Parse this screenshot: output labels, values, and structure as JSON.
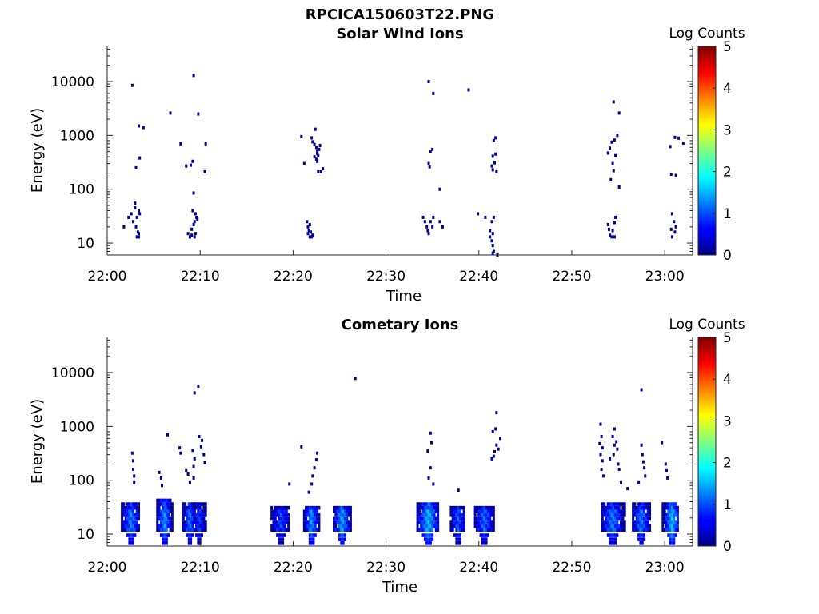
{
  "figure_title": "RPCICA150603T22.PNG",
  "colorbar": {
    "label": "Log Counts",
    "ticks": [
      "0",
      "1",
      "2",
      "3",
      "4",
      "5"
    ],
    "range": [
      0,
      5
    ]
  },
  "chart_data": [
    {
      "type": "heatmap",
      "title": "Solar Wind Ions",
      "xlabel": "Time",
      "ylabel": "Energy (eV)",
      "x_ticks": [
        "22:00",
        "22:10",
        "22:20",
        "22:30",
        "22:40",
        "22:50",
        "23:00"
      ],
      "y_ticks": [
        "10",
        "100",
        "1000",
        "10000"
      ],
      "y_scale": "log",
      "xlim_minutes": [
        0,
        63
      ],
      "ylim": [
        6,
        45000
      ],
      "clim": [
        0,
        5
      ],
      "points": [
        [
          2.7,
          8500,
          0.1
        ],
        [
          3.4,
          1500,
          0.1
        ],
        [
          3.9,
          1400,
          0.1
        ],
        [
          3.5,
          380,
          0.1
        ],
        [
          3.1,
          250,
          0.1
        ],
        [
          1.8,
          20,
          0.1
        ],
        [
          2.3,
          30,
          0.1
        ],
        [
          2.6,
          35,
          0.1
        ],
        [
          3.0,
          45,
          0.1
        ],
        [
          3.2,
          30,
          0.1
        ],
        [
          3.4,
          40,
          0.1
        ],
        [
          3.5,
          35,
          0.1
        ],
        [
          3.1,
          20,
          0.1
        ],
        [
          3.3,
          16,
          0.1
        ],
        [
          3.4,
          15,
          0.1
        ],
        [
          3.2,
          13,
          0.1
        ],
        [
          3.4,
          13,
          0.1
        ],
        [
          2.8,
          25,
          0.1
        ],
        [
          3.0,
          55,
          0.1
        ],
        [
          9.3,
          13000,
          0.1
        ],
        [
          6.8,
          2600,
          0.1
        ],
        [
          9.8,
          2500,
          0.1
        ],
        [
          7.9,
          700,
          0.1
        ],
        [
          10.6,
          700,
          0.1
        ],
        [
          8.5,
          270,
          0.1
        ],
        [
          9.0,
          280,
          0.1
        ],
        [
          9.2,
          330,
          0.1
        ],
        [
          10.5,
          210,
          0.1
        ],
        [
          9.3,
          85,
          0.1
        ],
        [
          8.7,
          15,
          0.1
        ],
        [
          8.9,
          13,
          0.1
        ],
        [
          9.1,
          18,
          0.1
        ],
        [
          9.3,
          22,
          0.1
        ],
        [
          9.4,
          25,
          0.1
        ],
        [
          9.2,
          40,
          0.1
        ],
        [
          9.5,
          35,
          0.1
        ],
        [
          9.6,
          30,
          0.1
        ],
        [
          9.1,
          14,
          0.1
        ],
        [
          9.4,
          13,
          0.1
        ],
        [
          9.5,
          15,
          0.1
        ],
        [
          9.7,
          28,
          0.1
        ],
        [
          20.9,
          950,
          0.1
        ],
        [
          22.0,
          900,
          0.1
        ],
        [
          22.4,
          1300,
          0.1
        ],
        [
          21.2,
          300,
          0.1
        ],
        [
          22.1,
          760,
          0.1
        ],
        [
          22.3,
          680,
          0.1
        ],
        [
          22.5,
          600,
          0.1
        ],
        [
          22.6,
          520,
          0.1
        ],
        [
          22.6,
          460,
          0.1
        ],
        [
          22.7,
          420,
          0.1
        ],
        [
          22.3,
          400,
          0.1
        ],
        [
          22.5,
          360,
          0.1
        ],
        [
          22.6,
          330,
          0.1
        ],
        [
          22.8,
          550,
          0.1
        ],
        [
          22.9,
          650,
          0.1
        ],
        [
          22.7,
          210,
          0.1
        ],
        [
          23.0,
          210,
          0.1
        ],
        [
          23.2,
          240,
          0.1
        ],
        [
          21.5,
          25,
          0.1
        ],
        [
          21.6,
          20,
          0.1
        ],
        [
          21.7,
          17,
          0.1
        ],
        [
          21.6,
          15,
          0.1
        ],
        [
          21.8,
          13,
          0.1
        ],
        [
          22.0,
          13,
          0.1
        ],
        [
          21.9,
          16,
          0.1
        ],
        [
          21.8,
          22,
          0.1
        ],
        [
          22.1,
          14,
          0.1
        ],
        [
          34.6,
          10000,
          0.1
        ],
        [
          35.1,
          6000,
          0.1
        ],
        [
          38.9,
          7000,
          0.1
        ],
        [
          35.0,
          550,
          0.1
        ],
        [
          34.8,
          500,
          0.1
        ],
        [
          34.6,
          300,
          0.1
        ],
        [
          34.7,
          260,
          0.1
        ],
        [
          35.8,
          100,
          0.1
        ],
        [
          34.0,
          30,
          0.1
        ],
        [
          34.2,
          25,
          0.1
        ],
        [
          34.4,
          20,
          0.1
        ],
        [
          34.5,
          17,
          0.1
        ],
        [
          34.8,
          25,
          0.1
        ],
        [
          35.1,
          30,
          0.1
        ],
        [
          35.0,
          20,
          0.1
        ],
        [
          34.6,
          15,
          0.1
        ],
        [
          35.8,
          25,
          0.1
        ],
        [
          36.1,
          20,
          0.1
        ],
        [
          41.8,
          900,
          0.1
        ],
        [
          41.6,
          800,
          0.1
        ],
        [
          41.8,
          450,
          0.1
        ],
        [
          41.5,
          410,
          0.1
        ],
        [
          41.4,
          270,
          0.1
        ],
        [
          41.7,
          310,
          0.1
        ],
        [
          41.5,
          230,
          0.1
        ],
        [
          41.9,
          210,
          0.1
        ],
        [
          39.9,
          35,
          0.1
        ],
        [
          41.4,
          25,
          0.1
        ],
        [
          41.6,
          30,
          0.1
        ],
        [
          41.2,
          17,
          0.1
        ],
        [
          41.5,
          15,
          0.1
        ],
        [
          41.2,
          13,
          0.1
        ],
        [
          41.4,
          11,
          0.1
        ],
        [
          41.5,
          9,
          0.1
        ],
        [
          41.6,
          7,
          0.1
        ],
        [
          41.5,
          6.5,
          0.1
        ],
        [
          42.0,
          6,
          0.1
        ],
        [
          40.7,
          30,
          0.1
        ],
        [
          54.5,
          4200,
          0.1
        ],
        [
          55.1,
          2600,
          0.1
        ],
        [
          53.9,
          470,
          0.1
        ],
        [
          54.1,
          580,
          0.1
        ],
        [
          54.3,
          750,
          0.1
        ],
        [
          54.6,
          820,
          0.1
        ],
        [
          54.9,
          1000,
          0.1
        ],
        [
          54.7,
          420,
          0.1
        ],
        [
          54.4,
          300,
          0.1
        ],
        [
          54.5,
          220,
          0.1
        ],
        [
          54.2,
          150,
          0.1
        ],
        [
          55.1,
          110,
          0.1
        ],
        [
          53.9,
          22,
          0.1
        ],
        [
          54.0,
          18,
          0.1
        ],
        [
          54.1,
          14,
          0.1
        ],
        [
          54.3,
          13,
          0.1
        ],
        [
          54.4,
          17,
          0.1
        ],
        [
          54.6,
          24,
          0.1
        ],
        [
          54.7,
          30,
          0.1
        ],
        [
          54.6,
          13,
          0.1
        ],
        [
          60.6,
          620,
          0.1
        ],
        [
          61.1,
          920,
          0.1
        ],
        [
          61.5,
          890,
          0.1
        ],
        [
          62.0,
          720,
          0.1
        ],
        [
          60.7,
          190,
          0.1
        ],
        [
          61.2,
          180,
          0.1
        ],
        [
          60.8,
          35,
          0.1
        ],
        [
          61.0,
          25,
          0.1
        ],
        [
          60.7,
          18,
          0.1
        ],
        [
          60.8,
          13,
          0.1
        ],
        [
          61.1,
          16,
          0.1
        ],
        [
          61.2,
          20,
          0.1
        ]
      ]
    },
    {
      "type": "heatmap",
      "title": "Cometary Ions",
      "xlabel": "Time",
      "ylabel": "Energy (eV)",
      "x_ticks": [
        "22:00",
        "22:10",
        "22:20",
        "22:30",
        "22:40",
        "22:50",
        "23:00"
      ],
      "y_ticks": [
        "10",
        "100",
        "1000",
        "10000"
      ],
      "y_scale": "log",
      "xlim_minutes": [
        0,
        63
      ],
      "ylim": [
        6,
        45000
      ],
      "clim": [
        0,
        5
      ],
      "blocks": [
        {
          "t0": 1.6,
          "t1": 3.6,
          "peak": 2.6,
          "emax": 40,
          "level": 1.2
        },
        {
          "t0": 5.4,
          "t1": 7.2,
          "peak": 6.2,
          "emax": 45,
          "level": 1.3
        },
        {
          "t0": 8.2,
          "t1": 9.5,
          "peak": 8.9,
          "emax": 40,
          "level": 1.2
        },
        {
          "t0": 9.4,
          "t1": 10.7,
          "peak": 9.9,
          "emax": 40,
          "level": 0.9
        },
        {
          "t0": 17.7,
          "t1": 19.6,
          "peak": 18.7,
          "emax": 35,
          "level": 0.9
        },
        {
          "t0": 21.2,
          "t1": 22.8,
          "peak": 22.0,
          "emax": 35,
          "level": 1.3
        },
        {
          "t0": 24.4,
          "t1": 26.2,
          "peak": 25.3,
          "emax": 35,
          "level": 1.4
        },
        {
          "t0": 33.4,
          "t1": 35.8,
          "peak": 34.6,
          "emax": 40,
          "level": 1.5
        },
        {
          "t0": 37.0,
          "t1": 38.6,
          "peak": 37.8,
          "emax": 35,
          "level": 1.0
        },
        {
          "t0": 39.6,
          "t1": 41.7,
          "peak": 40.6,
          "emax": 35,
          "level": 1.1
        },
        {
          "t0": 53.3,
          "t1": 55.8,
          "peak": 54.4,
          "emax": 40,
          "level": 1.2
        },
        {
          "t0": 56.6,
          "t1": 58.5,
          "peak": 57.5,
          "emax": 40,
          "level": 1.2
        },
        {
          "t0": 59.8,
          "t1": 61.6,
          "peak": 60.8,
          "emax": 40,
          "level": 1.5
        }
      ],
      "points": [
        [
          9.4,
          4200,
          0.1
        ],
        [
          9.8,
          5600,
          0.1
        ],
        [
          26.7,
          7800,
          0.1
        ],
        [
          57.5,
          4800,
          0.1
        ],
        [
          6.5,
          700,
          0.1
        ],
        [
          9.9,
          650,
          0.1
        ],
        [
          10.2,
          550,
          0.1
        ],
        [
          10.1,
          420,
          0.1
        ],
        [
          10.4,
          300,
          0.1
        ],
        [
          10.5,
          210,
          0.1
        ],
        [
          9.2,
          360,
          0.1
        ],
        [
          9.4,
          250,
          0.1
        ],
        [
          9.3,
          180,
          0.1
        ],
        [
          7.8,
          400,
          0.1
        ],
        [
          7.9,
          320,
          0.1
        ],
        [
          8.5,
          150,
          0.1
        ],
        [
          8.7,
          130,
          0.1
        ],
        [
          8.9,
          90,
          0.1
        ],
        [
          9.3,
          110,
          0.1
        ],
        [
          2.7,
          320,
          0.1
        ],
        [
          2.8,
          230,
          0.1
        ],
        [
          2.8,
          160,
          0.1
        ],
        [
          2.9,
          120,
          0.1
        ],
        [
          2.9,
          90,
          0.1
        ],
        [
          5.6,
          140,
          0.1
        ],
        [
          5.8,
          110,
          0.1
        ],
        [
          5.9,
          80,
          0.1
        ],
        [
          20.9,
          420,
          0.1
        ],
        [
          22.6,
          320,
          0.1
        ],
        [
          22.5,
          240,
          0.1
        ],
        [
          22.3,
          170,
          0.1
        ],
        [
          22.1,
          120,
          0.1
        ],
        [
          22.0,
          85,
          0.1
        ],
        [
          19.6,
          85,
          0.1
        ],
        [
          21.7,
          60,
          0.1
        ],
        [
          34.8,
          750,
          0.1
        ],
        [
          34.9,
          500,
          0.1
        ],
        [
          34.5,
          350,
          0.1
        ],
        [
          34.8,
          170,
          0.1
        ],
        [
          34.6,
          110,
          0.1
        ],
        [
          35.1,
          85,
          0.1
        ],
        [
          37.8,
          65,
          0.1
        ],
        [
          41.9,
          1800,
          0.1
        ],
        [
          41.8,
          900,
          0.1
        ],
        [
          41.5,
          800,
          0.1
        ],
        [
          42.3,
          600,
          0.1
        ],
        [
          41.9,
          450,
          0.1
        ],
        [
          42.1,
          380,
          0.1
        ],
        [
          41.7,
          340,
          0.1
        ],
        [
          41.6,
          280,
          0.1
        ],
        [
          41.4,
          250,
          0.1
        ],
        [
          53.1,
          1100,
          0.1
        ],
        [
          53.2,
          650,
          0.1
        ],
        [
          53.0,
          480,
          0.1
        ],
        [
          53.3,
          400,
          0.1
        ],
        [
          53.1,
          300,
          0.1
        ],
        [
          53.3,
          230,
          0.1
        ],
        [
          53.2,
          160,
          0.1
        ],
        [
          53.4,
          120,
          0.1
        ],
        [
          54.6,
          900,
          0.1
        ],
        [
          54.4,
          650,
          0.1
        ],
        [
          54.8,
          520,
          0.1
        ],
        [
          54.6,
          450,
          0.1
        ],
        [
          54.9,
          380,
          0.1
        ],
        [
          54.5,
          300,
          0.1
        ],
        [
          54.1,
          250,
          0.1
        ],
        [
          55.0,
          200,
          0.1
        ],
        [
          55.1,
          160,
          0.1
        ],
        [
          55.3,
          90,
          0.1
        ],
        [
          56.0,
          70,
          0.1
        ],
        [
          57.5,
          450,
          0.1
        ],
        [
          57.6,
          300,
          0.1
        ],
        [
          57.7,
          220,
          0.1
        ],
        [
          57.8,
          170,
          0.1
        ],
        [
          57.9,
          120,
          0.1
        ],
        [
          57.2,
          90,
          0.1
        ],
        [
          59.7,
          500,
          0.1
        ],
        [
          60.1,
          200,
          0.1
        ],
        [
          60.2,
          150,
          0.1
        ],
        [
          60.3,
          110,
          0.1
        ]
      ]
    }
  ]
}
